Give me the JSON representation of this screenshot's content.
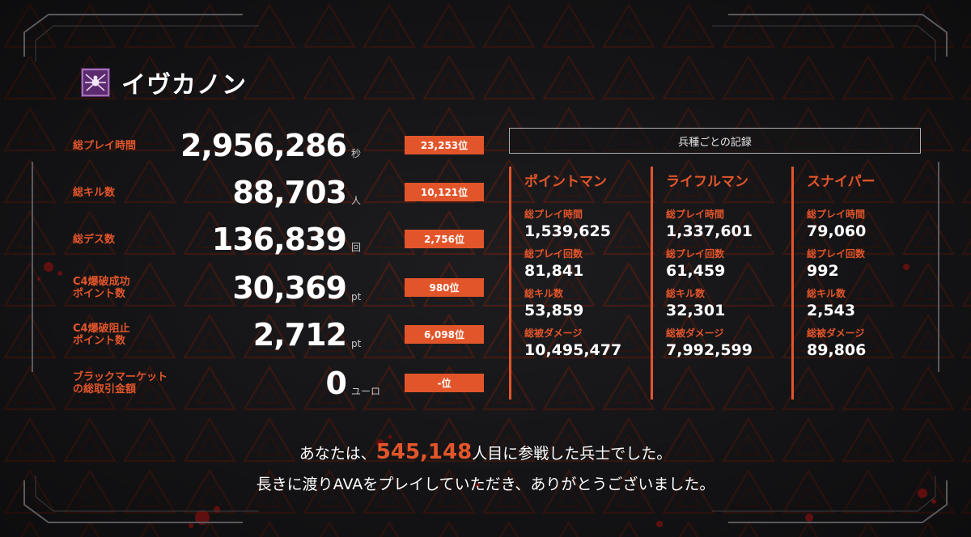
{
  "player": {
    "name": "イヴカノン",
    "emblem_icon": "spider-emblem-icon"
  },
  "colors": {
    "accent": "#e2552a",
    "background": "#1b1b1d"
  },
  "stats": [
    {
      "label": "総プレイ時間",
      "value": "2,956,286",
      "unit": "秒",
      "rank": "23,253位"
    },
    {
      "label": "総キル数",
      "value": "88,703",
      "unit": "人",
      "rank": "10,121位"
    },
    {
      "label": "総デス数",
      "value": "136,839",
      "unit": "回",
      "rank": "2,756位"
    },
    {
      "label": "C4爆破成功\nポイント数",
      "value": "30,369",
      "unit": "pt",
      "rank": "980位"
    },
    {
      "label": "C4爆破阻止\nポイント数",
      "value": "2,712",
      "unit": "pt",
      "rank": "6,098位"
    },
    {
      "label": "ブラックマーケット\nの総取引金額",
      "value": "0",
      "unit": "ユーロ",
      "rank": "-位"
    }
  ],
  "class_records": {
    "header": "兵種ごとの記録",
    "classes": [
      {
        "name": "ポイントマン",
        "metrics": [
          {
            "label": "総プレイ時間",
            "value": "1,539,625"
          },
          {
            "label": "総プレイ回数",
            "value": "81,841"
          },
          {
            "label": "総キル数",
            "value": "53,859"
          },
          {
            "label": "総被ダメージ",
            "value": "10,495,477"
          }
        ]
      },
      {
        "name": "ライフルマン",
        "metrics": [
          {
            "label": "総プレイ時間",
            "value": "1,337,601"
          },
          {
            "label": "総プレイ回数",
            "value": "61,459"
          },
          {
            "label": "総キル数",
            "value": "32,301"
          },
          {
            "label": "総被ダメージ",
            "value": "7,992,599"
          }
        ]
      },
      {
        "name": "スナイパー",
        "metrics": [
          {
            "label": "総プレイ時間",
            "value": "79,060"
          },
          {
            "label": "総プレイ回数",
            "value": "992"
          },
          {
            "label": "総キル数",
            "value": "2,543"
          },
          {
            "label": "総被ダメージ",
            "value": "89,806"
          }
        ]
      }
    ]
  },
  "footer": {
    "line1_prefix": "あなたは、",
    "line1_number": "545,148",
    "line1_suffix": "人目に参戦した兵士でした。",
    "line2": "長きに渡りAVAをプレイしていただき、ありがとうございました。"
  }
}
